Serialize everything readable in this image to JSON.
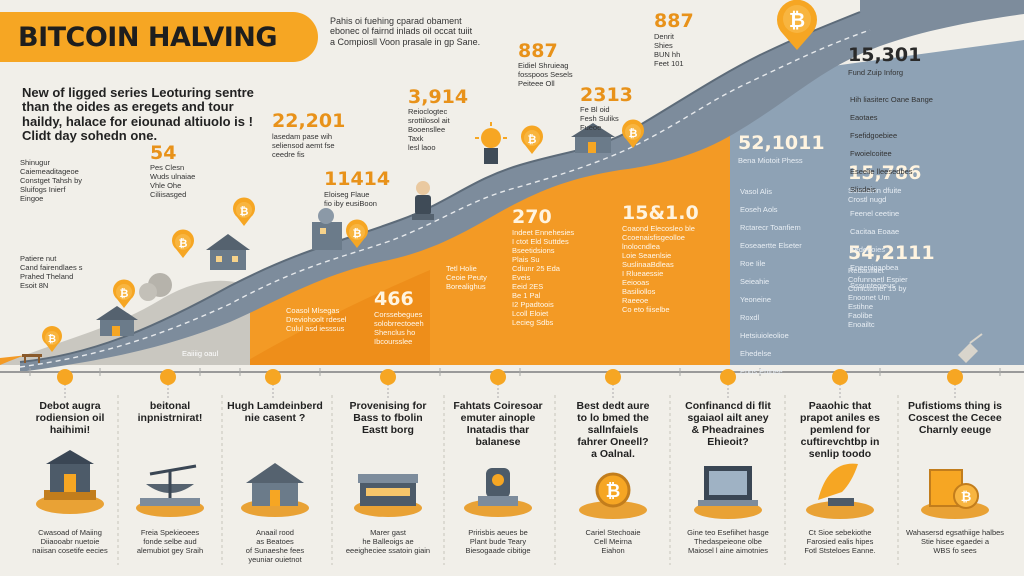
{
  "title": "BITCOIN HALVING",
  "header_note": "Pahis oi fuehing cparad obament\nebonec ol fairnd inlads oil occat tuiit\na Compiosll Voon prasale in gp Sane.",
  "intro_text": "New of ligged series Leoturing sentre\nthan the oides as eregets and tour\nhaildy, halace for eiounad altiuolo is !\nClidt day sohedn one.",
  "left_notes": [
    "Shinugur\nCaiemeaditageoe\nConstget Tahsh by\nSluifogs Inierf\nEingoe",
    "Patiere nut\nCand fairendlaes s\nPrahed Theland\nEsoit 8N"
  ],
  "stats": [
    {
      "value": "54",
      "text": "Pes Clesn\nWuds ulnaiae\nVhle Ohe\nCiliisasged"
    },
    {
      "value": "22,201",
      "text": "lasedam pase wih\nseliensod aemt fse\nceedre fis"
    },
    {
      "value": "11414",
      "text": "Eloiseg Flaue\nfio iby eusiBoon"
    },
    {
      "value": "3,914",
      "text": "Reioclogtec\nsrottilosol ait\nBooensllee\nTaxk\nlesl laoo"
    },
    {
      "value": "887",
      "text": "Eidiel Shruieag\nfosspoos Sesels\nPeiteee Oll"
    },
    {
      "value": "2313",
      "text": "Fe Bl oid\nFesh Suliks\nFueoe"
    },
    {
      "value": "887",
      "text": "Denrit\nShies\nBUN hh\nFeet 101"
    },
    {
      "value": "15,301",
      "text": "Fund Zuip Inforg"
    },
    {
      "value": "52,1011",
      "text": "Bena Miotoit Phess"
    },
    {
      "value": "15,786",
      "text": "Soosalinn dfuite\nCrostl nugd"
    },
    {
      "value": "54,2111",
      "text": "Redaufitiet\nCofunnaetl Espier\nConictcmer 15 by\nEnoonet Um\nEstihne\nFaolibe\nEnoailtc"
    },
    {
      "value": "466",
      "text": "Corssebegues\nsolobrrectoeeh\nShenclus ho\nIbcoursslee"
    },
    {
      "value": "270",
      "text": "Indeet Ennehesies\nI ctot Eld Suttdes\nBseetidsions\nPlais Su\nCdiunr 25 Eda\nEveis\nEeid 2ES\nBe 1 Pal\nI2 Ppadtoois\nLcoll Eloiet\nLecieg Sdbs"
    },
    {
      "value": "15&1.0",
      "text": "Coaond Elecosleo ble\nCcoenaisfisgeolloe\nlnolocndlea\nLoie Seaenlsie\nSuslinaaBdleas\nI Rlueaessie\nEeiooas\nBasiliollos\nRaeeoe\nCo eto fiiselbe"
    }
  ],
  "small_notes": {
    "ground": "Coasol Mlsegas\nDreviohoolt rdesel\nCulul asd iesssus",
    "mid": "Tetl Holie\nCeoie Peuty\nBorealighus",
    "road_label": "Eaiiiig oaul",
    "right_list_a": [
      "Vasol Alis",
      "Eoseh Aols",
      "Rctarecr Toanfiem",
      "Eoseaertte Elseter",
      "Roe Iile",
      "Seieahie",
      "Yeoneine",
      "Roxdl",
      "Hetsiuioleolioe",
      "Ehedelse",
      "Enos Ehinee"
    ],
    "right_list_b": [
      "Hih liasiterc Oane Bange",
      "Eaotaes",
      "Fsefidgoebiee",
      "Fwoielcoitee",
      "Eseelie lleesedbes",
      "Slisdeis"
    ],
    "right_list_c": [
      "Feenel ceetine",
      "Cacitaa Eoaae",
      "Fedeeoies",
      "Eneenigaobea",
      "Sssunteoieus"
    ]
  },
  "timeline": [
    {
      "title": "Debot augra\nrodiension oil\nhaihimi!",
      "caption": "Cwasoad of Maiing\nDiiaooabr nuetoie\nnaiisan cosetife eecies"
    },
    {
      "title": "beitonal\ninpnistrnirat!",
      "caption": "Freia Spekieoees\nfonde selbe aud\nalemubiot gey Sraih"
    },
    {
      "title": "Hugh Lamdeinberd\nnie casent ?",
      "caption": "Anaail rood\nas Beatoes\nof Sunaeshe fees\nyeuniar ouietnot"
    },
    {
      "title": "Provenising for\nBass to fbolin\nEastt borg",
      "caption": "Marer gast\nhe Balleoigs ae\neeeigheciee ssatoin giain"
    },
    {
      "title": "Fahtats Coiresoar\nemuter ainople\nInatadis thar\nbalanese",
      "caption": "Pririsbis aeues be\nPlant bude Teary\nBiesogaade cibitige"
    },
    {
      "title": "Best dedt aure\nto lo bmed the\nsallnfaiels\nfahrer Oneell?\na Oalnal.",
      "caption": "Cariel Stechoaie\nCell Meirna\nEiahon"
    },
    {
      "title": "Confinancd di flit\nsgaiaol ailt aney\n& Pheadraines\nEhieoit?",
      "caption": "Gine teo Esefiihet hasge\nThedaspeieone olbe\nMaiosel l aine aimotnies"
    },
    {
      "title": "Paaohic that\nprapot aniles es\npemlend for\ncuftirevchtbp in\nsenlip toodo",
      "caption": "Ct Sioe sebekiothe\nFarosied ealis hipes\nFotl Ststeloes Eanne."
    },
    {
      "title": "Pufistioms thing is\nCoscest the Cecee\nCharnly eeuge",
      "caption": "Wahasersd egsathiige halbes\nStie hisee egaedei a\nWBS fo sees"
    }
  ],
  "colors": {
    "accent": "#f6a623",
    "orange": "#f39a25",
    "road": "#7d8c9c",
    "slate": "#8ea2b5",
    "cream": "#f1efe9"
  },
  "icons": [
    "bitcoin-coin-icon",
    "house-icon",
    "miner-icon",
    "scale-icon",
    "computer-icon",
    "tree-icon",
    "wallet-icon"
  ]
}
